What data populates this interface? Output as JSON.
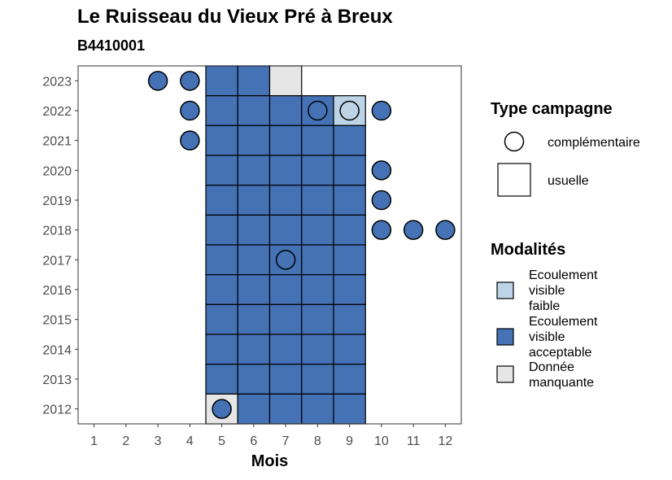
{
  "chart_data": {
    "type": "heatmap",
    "title": "Le Ruisseau du Vieux Pré à Breux",
    "subtitle": "B4410001",
    "xlabel": "Mois",
    "ylabel": "",
    "x_ticks": [
      1,
      2,
      3,
      4,
      5,
      6,
      7,
      8,
      9,
      10,
      11,
      12
    ],
    "y_ticks": [
      2012,
      2013,
      2014,
      2015,
      2016,
      2017,
      2018,
      2019,
      2020,
      2021,
      2022,
      2023
    ],
    "xlim": [
      0.5,
      12.5
    ],
    "ylim": [
      2011.5,
      2023.5
    ],
    "grid": false,
    "colors": {
      "Ecoulement visible faible": "#bcd4e6",
      "Ecoulement visible acceptable": "#4472b5",
      "Donnée manquante": "#e6e6e6"
    },
    "cells": [
      {
        "year": 2023,
        "month": 5,
        "type": "usuelle",
        "modalite": "Ecoulement visible acceptable"
      },
      {
        "year": 2023,
        "month": 6,
        "type": "usuelle",
        "modalite": "Ecoulement visible acceptable"
      },
      {
        "year": 2023,
        "month": 7,
        "type": "usuelle",
        "modalite": "Donnée manquante"
      },
      {
        "year": 2023,
        "month": 3,
        "type": "complémentaire",
        "modalite": "Ecoulement visible acceptable"
      },
      {
        "year": 2023,
        "month": 4,
        "type": "complémentaire",
        "modalite": "Ecoulement visible acceptable"
      },
      {
        "year": 2022,
        "month": 5,
        "type": "usuelle",
        "modalite": "Ecoulement visible acceptable"
      },
      {
        "year": 2022,
        "month": 6,
        "type": "usuelle",
        "modalite": "Ecoulement visible acceptable"
      },
      {
        "year": 2022,
        "month": 7,
        "type": "usuelle",
        "modalite": "Ecoulement visible acceptable"
      },
      {
        "year": 2022,
        "month": 8,
        "type": "usuelle",
        "modalite": "Ecoulement visible acceptable"
      },
      {
        "year": 2022,
        "month": 9,
        "type": "usuelle",
        "modalite": "Ecoulement visible faible"
      },
      {
        "year": 2022,
        "month": 4,
        "type": "complémentaire",
        "modalite": "Ecoulement visible acceptable"
      },
      {
        "year": 2022,
        "month": 8,
        "type": "complémentaire",
        "modalite": "Ecoulement visible acceptable"
      },
      {
        "year": 2022,
        "month": 9,
        "type": "complémentaire",
        "modalite": "Ecoulement visible faible"
      },
      {
        "year": 2022,
        "month": 10,
        "type": "complémentaire",
        "modalite": "Ecoulement visible acceptable"
      },
      {
        "year": 2021,
        "month": 5,
        "type": "usuelle",
        "modalite": "Ecoulement visible acceptable"
      },
      {
        "year": 2021,
        "month": 6,
        "type": "usuelle",
        "modalite": "Ecoulement visible acceptable"
      },
      {
        "year": 2021,
        "month": 7,
        "type": "usuelle",
        "modalite": "Ecoulement visible acceptable"
      },
      {
        "year": 2021,
        "month": 8,
        "type": "usuelle",
        "modalite": "Ecoulement visible acceptable"
      },
      {
        "year": 2021,
        "month": 9,
        "type": "usuelle",
        "modalite": "Ecoulement visible acceptable"
      },
      {
        "year": 2021,
        "month": 4,
        "type": "complémentaire",
        "modalite": "Ecoulement visible acceptable"
      },
      {
        "year": 2020,
        "month": 5,
        "type": "usuelle",
        "modalite": "Ecoulement visible acceptable"
      },
      {
        "year": 2020,
        "month": 6,
        "type": "usuelle",
        "modalite": "Ecoulement visible acceptable"
      },
      {
        "year": 2020,
        "month": 7,
        "type": "usuelle",
        "modalite": "Ecoulement visible acceptable"
      },
      {
        "year": 2020,
        "month": 8,
        "type": "usuelle",
        "modalite": "Ecoulement visible acceptable"
      },
      {
        "year": 2020,
        "month": 9,
        "type": "usuelle",
        "modalite": "Ecoulement visible acceptable"
      },
      {
        "year": 2020,
        "month": 10,
        "type": "complémentaire",
        "modalite": "Ecoulement visible acceptable"
      },
      {
        "year": 2019,
        "month": 5,
        "type": "usuelle",
        "modalite": "Ecoulement visible acceptable"
      },
      {
        "year": 2019,
        "month": 6,
        "type": "usuelle",
        "modalite": "Ecoulement visible acceptable"
      },
      {
        "year": 2019,
        "month": 7,
        "type": "usuelle",
        "modalite": "Ecoulement visible acceptable"
      },
      {
        "year": 2019,
        "month": 8,
        "type": "usuelle",
        "modalite": "Ecoulement visible acceptable"
      },
      {
        "year": 2019,
        "month": 9,
        "type": "usuelle",
        "modalite": "Ecoulement visible acceptable"
      },
      {
        "year": 2019,
        "month": 10,
        "type": "complémentaire",
        "modalite": "Ecoulement visible acceptable"
      },
      {
        "year": 2018,
        "month": 5,
        "type": "usuelle",
        "modalite": "Ecoulement visible acceptable"
      },
      {
        "year": 2018,
        "month": 6,
        "type": "usuelle",
        "modalite": "Ecoulement visible acceptable"
      },
      {
        "year": 2018,
        "month": 7,
        "type": "usuelle",
        "modalite": "Ecoulement visible acceptable"
      },
      {
        "year": 2018,
        "month": 8,
        "type": "usuelle",
        "modalite": "Ecoulement visible acceptable"
      },
      {
        "year": 2018,
        "month": 9,
        "type": "usuelle",
        "modalite": "Ecoulement visible acceptable"
      },
      {
        "year": 2018,
        "month": 10,
        "type": "complémentaire",
        "modalite": "Ecoulement visible acceptable"
      },
      {
        "year": 2018,
        "month": 11,
        "type": "complémentaire",
        "modalite": "Ecoulement visible acceptable"
      },
      {
        "year": 2018,
        "month": 12,
        "type": "complémentaire",
        "modalite": "Ecoulement visible acceptable"
      },
      {
        "year": 2017,
        "month": 5,
        "type": "usuelle",
        "modalite": "Ecoulement visible acceptable"
      },
      {
        "year": 2017,
        "month": 6,
        "type": "usuelle",
        "modalite": "Ecoulement visible acceptable"
      },
      {
        "year": 2017,
        "month": 7,
        "type": "usuelle",
        "modalite": "Ecoulement visible acceptable"
      },
      {
        "year": 2017,
        "month": 8,
        "type": "usuelle",
        "modalite": "Ecoulement visible acceptable"
      },
      {
        "year": 2017,
        "month": 9,
        "type": "usuelle",
        "modalite": "Ecoulement visible acceptable"
      },
      {
        "year": 2017,
        "month": 7,
        "type": "complémentaire",
        "modalite": "Ecoulement visible acceptable"
      },
      {
        "year": 2016,
        "month": 5,
        "type": "usuelle",
        "modalite": "Ecoulement visible acceptable"
      },
      {
        "year": 2016,
        "month": 6,
        "type": "usuelle",
        "modalite": "Ecoulement visible acceptable"
      },
      {
        "year": 2016,
        "month": 7,
        "type": "usuelle",
        "modalite": "Ecoulement visible acceptable"
      },
      {
        "year": 2016,
        "month": 8,
        "type": "usuelle",
        "modalite": "Ecoulement visible acceptable"
      },
      {
        "year": 2016,
        "month": 9,
        "type": "usuelle",
        "modalite": "Ecoulement visible acceptable"
      },
      {
        "year": 2015,
        "month": 5,
        "type": "usuelle",
        "modalite": "Ecoulement visible acceptable"
      },
      {
        "year": 2015,
        "month": 6,
        "type": "usuelle",
        "modalite": "Ecoulement visible acceptable"
      },
      {
        "year": 2015,
        "month": 7,
        "type": "usuelle",
        "modalite": "Ecoulement visible acceptable"
      },
      {
        "year": 2015,
        "month": 8,
        "type": "usuelle",
        "modalite": "Ecoulement visible acceptable"
      },
      {
        "year": 2015,
        "month": 9,
        "type": "usuelle",
        "modalite": "Ecoulement visible acceptable"
      },
      {
        "year": 2014,
        "month": 5,
        "type": "usuelle",
        "modalite": "Ecoulement visible acceptable"
      },
      {
        "year": 2014,
        "month": 6,
        "type": "usuelle",
        "modalite": "Ecoulement visible acceptable"
      },
      {
        "year": 2014,
        "month": 7,
        "type": "usuelle",
        "modalite": "Ecoulement visible acceptable"
      },
      {
        "year": 2014,
        "month": 8,
        "type": "usuelle",
        "modalite": "Ecoulement visible acceptable"
      },
      {
        "year": 2014,
        "month": 9,
        "type": "usuelle",
        "modalite": "Ecoulement visible acceptable"
      },
      {
        "year": 2013,
        "month": 5,
        "type": "usuelle",
        "modalite": "Ecoulement visible acceptable"
      },
      {
        "year": 2013,
        "month": 6,
        "type": "usuelle",
        "modalite": "Ecoulement visible acceptable"
      },
      {
        "year": 2013,
        "month": 7,
        "type": "usuelle",
        "modalite": "Ecoulement visible acceptable"
      },
      {
        "year": 2013,
        "month": 8,
        "type": "usuelle",
        "modalite": "Ecoulement visible acceptable"
      },
      {
        "year": 2013,
        "month": 9,
        "type": "usuelle",
        "modalite": "Ecoulement visible acceptable"
      },
      {
        "year": 2012,
        "month": 5,
        "type": "usuelle",
        "modalite": "Donnée manquante"
      },
      {
        "year": 2012,
        "month": 6,
        "type": "usuelle",
        "modalite": "Ecoulement visible acceptable"
      },
      {
        "year": 2012,
        "month": 7,
        "type": "usuelle",
        "modalite": "Ecoulement visible acceptable"
      },
      {
        "year": 2012,
        "month": 8,
        "type": "usuelle",
        "modalite": "Ecoulement visible acceptable"
      },
      {
        "year": 2012,
        "month": 9,
        "type": "usuelle",
        "modalite": "Ecoulement visible acceptable"
      },
      {
        "year": 2012,
        "month": 5,
        "type": "complémentaire",
        "modalite": "Ecoulement visible acceptable"
      }
    ],
    "legend": {
      "type_title": "Type campagne",
      "type_entries": [
        "complémentaire",
        "usuelle"
      ],
      "modalites_title": "Modalités",
      "modalites_entries": [
        {
          "lines": [
            "Ecoulement",
            "visible",
            "faible"
          ],
          "name": "Ecoulement visible faible"
        },
        {
          "lines": [
            "Ecoulement",
            "visible",
            "acceptable"
          ],
          "name": "Ecoulement visible acceptable"
        },
        {
          "lines": [
            "Donnée",
            "manquante"
          ],
          "name": "Donnée manquante"
        }
      ],
      "placement": "right"
    }
  }
}
